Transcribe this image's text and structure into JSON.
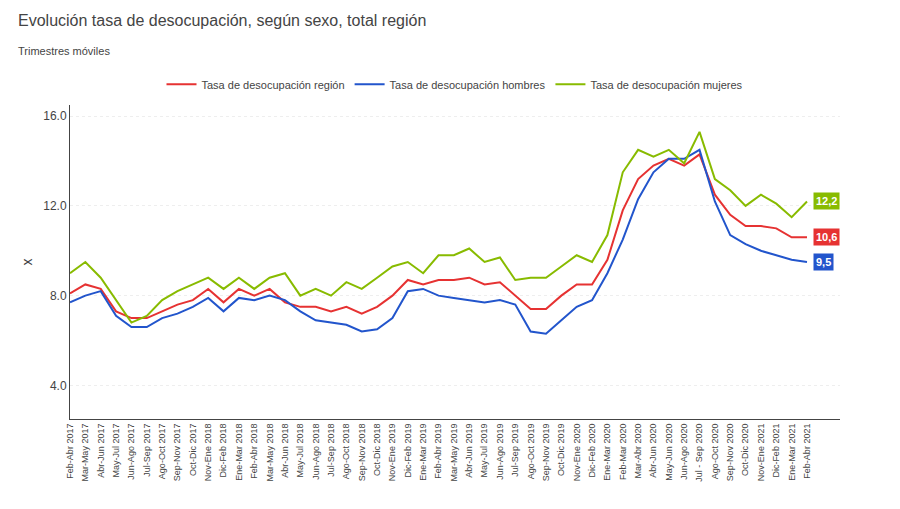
{
  "chart_data": {
    "type": "line",
    "title": "Evolución tasa de desocupación, según sexo, total región",
    "subtitle": "Trimestres móviles",
    "y_label": "x",
    "categories": [
      "Feb-Abr 2017",
      "Mar-May 2017",
      "Abr-Jun 2017",
      "May-Jul 2017",
      "Jun-Ago 2017",
      "Jul-Sep 2017",
      "Ago-Oct 2017",
      "Sep-Nov 2017",
      "Oct-Dic 2017",
      "Nov-Ene 2018",
      "Dic-Feb 2018",
      "Ene-Mar 2018",
      "Feb-Abr 2018",
      "Mar-May 2018",
      "Abr-Jun 2018",
      "May-Jul 2018",
      "Jun-Ago 2018",
      "Jul-Sep 2018",
      "Ago-Oct 2018",
      "Sep-Nov 2018",
      "Oct-Dic 2018",
      "Nov-Ene 2019",
      "Dic-Feb 2019",
      "Ene-Mar 2019",
      "Feb-Abr 2019",
      "Mar-May 2019",
      "Abr-Jun 2019",
      "May-Jul 2019",
      "Jun-Ago 2019",
      "Jul-Sep 2019",
      "Ago-Oct 2019",
      "Sep-Nov 2019",
      "Oct-Dic 2019",
      "Nov-Ene 2020",
      "Dic-Feb 2020",
      "Ene-Mar 2020",
      "Feb-Mar 2020",
      "Mar-Abr 2020",
      "Abr-Jun 2020",
      "May-Jun 2020",
      "Jun-Ago 2020",
      "Jul - Sep 2020",
      "Ago-Oct 2020",
      "Sep-Nov 2020",
      "Oct-Dic 2020",
      "Nov-Ene 2021",
      "Dic-Feb 2021",
      "Ene-Mar 2021",
      "Feb-Abr 2021"
    ],
    "series": [
      {
        "name": "Tasa de desocupación región",
        "color": "#e63232",
        "values": [
          8.1,
          8.5,
          8.3,
          7.3,
          7.0,
          7.0,
          7.3,
          7.6,
          7.8,
          8.3,
          7.7,
          8.3,
          8.0,
          8.3,
          7.7,
          7.5,
          7.5,
          7.3,
          7.5,
          7.2,
          7.5,
          8.0,
          8.7,
          8.5,
          8.7,
          8.7,
          8.8,
          8.5,
          8.6,
          8.0,
          7.4,
          7.4,
          8.0,
          8.5,
          8.5,
          9.6,
          11.8,
          13.2,
          13.8,
          14.1,
          13.8,
          14.3,
          12.5,
          11.6,
          11.1,
          11.1,
          11.0,
          10.6,
          10.6
        ]
      },
      {
        "name": "Tasa de desocupación hombres",
        "color": "#2255cc",
        "values": [
          7.7,
          8.0,
          8.2,
          7.1,
          6.6,
          6.6,
          7.0,
          7.2,
          7.5,
          7.9,
          7.3,
          7.9,
          7.8,
          8.0,
          7.8,
          7.3,
          6.9,
          6.8,
          6.7,
          6.4,
          6.5,
          7.0,
          8.2,
          8.3,
          8.0,
          7.9,
          7.8,
          7.7,
          7.8,
          7.6,
          6.4,
          6.3,
          6.9,
          7.5,
          7.8,
          9.0,
          10.5,
          12.3,
          13.5,
          14.1,
          14.1,
          14.5,
          12.2,
          10.7,
          10.3,
          10.0,
          9.8,
          9.6,
          9.5
        ]
      },
      {
        "name": "Tasa de desocupación mujeres",
        "color": "#88bb00",
        "values": [
          9.0,
          9.5,
          8.8,
          7.8,
          6.8,
          7.1,
          7.8,
          8.2,
          8.5,
          8.8,
          8.3,
          8.8,
          8.3,
          8.8,
          9.0,
          8.0,
          8.3,
          8.0,
          8.6,
          8.3,
          8.8,
          9.3,
          9.5,
          9.0,
          9.8,
          9.8,
          10.1,
          9.5,
          9.7,
          8.7,
          8.8,
          8.8,
          9.3,
          9.8,
          9.5,
          10.7,
          13.5,
          14.5,
          14.2,
          14.5,
          13.9,
          15.3,
          13.2,
          12.7,
          12.0,
          12.5,
          12.1,
          11.5,
          12.2
        ]
      }
    ],
    "ylim": [
      2.5,
      16.5
    ],
    "yticks": [
      {
        "value": 4.0,
        "label": "4.0"
      },
      {
        "value": 8.0,
        "label": "8.0"
      },
      {
        "value": 12.0,
        "label": "12.0"
      },
      {
        "value": 16.0,
        "label": "16.0"
      }
    ],
    "grid": true,
    "legend": "top",
    "annotations": [
      {
        "text": "10,6",
        "x": "Feb-Abr 2021",
        "y": 10.6,
        "color": "#e63232"
      },
      {
        "text": "9,5",
        "x": "Feb-Abr 2021",
        "y": 9.5,
        "color": "#2255cc"
      },
      {
        "text": "12,2",
        "x": "Feb-Abr 2021",
        "y": 12.2,
        "color": "#88bb00"
      }
    ]
  }
}
